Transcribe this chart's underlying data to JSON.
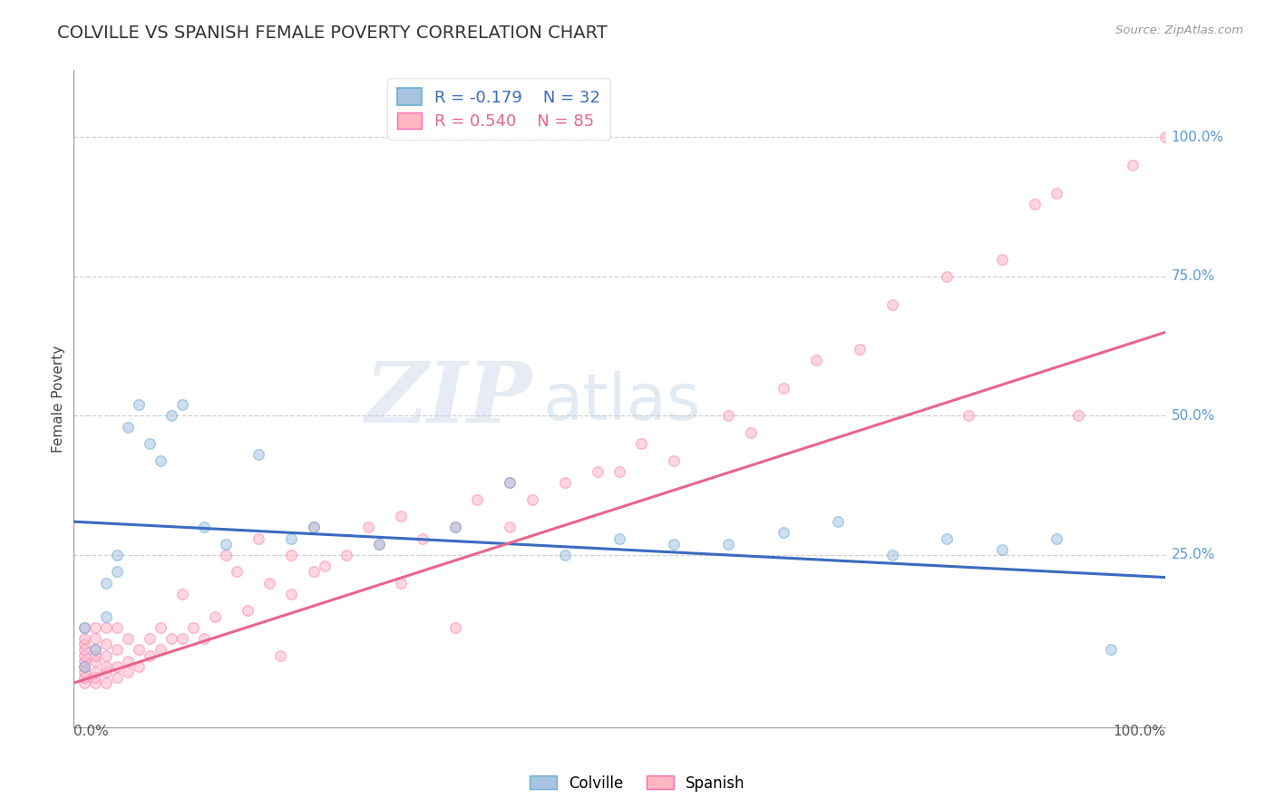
{
  "title": "COLVILLE VS SPANISH FEMALE POVERTY CORRELATION CHART",
  "source_text": "Source: ZipAtlas.com",
  "ylabel": "Female Poverty",
  "x_label_bottom_left": "0.0%",
  "x_label_bottom_right": "100.0%",
  "y_tick_labels": [
    "25.0%",
    "50.0%",
    "75.0%",
    "100.0%"
  ],
  "y_tick_positions": [
    0.25,
    0.5,
    0.75,
    1.0
  ],
  "colville_color": "#a8c4e0",
  "colville_edge_color": "#6baed6",
  "spanish_color": "#ffb6c1",
  "spanish_edge_color": "#ff69b4",
  "colville_line_color": "#3a6bbf",
  "spanish_line_color": "#e8658a",
  "colville_R": -0.179,
  "colville_N": 32,
  "spanish_R": 0.54,
  "spanish_N": 85,
  "colville_x": [
    0.01,
    0.01,
    0.02,
    0.03,
    0.03,
    0.04,
    0.04,
    0.05,
    0.06,
    0.07,
    0.08,
    0.09,
    0.1,
    0.12,
    0.14,
    0.17,
    0.2,
    0.22,
    0.28,
    0.35,
    0.4,
    0.45,
    0.5,
    0.55,
    0.6,
    0.65,
    0.7,
    0.75,
    0.8,
    0.85,
    0.9,
    0.95
  ],
  "colville_y": [
    0.05,
    0.12,
    0.08,
    0.14,
    0.2,
    0.22,
    0.25,
    0.48,
    0.52,
    0.45,
    0.42,
    0.5,
    0.52,
    0.3,
    0.27,
    0.43,
    0.28,
    0.3,
    0.27,
    0.3,
    0.38,
    0.25,
    0.28,
    0.27,
    0.27,
    0.29,
    0.31,
    0.25,
    0.28,
    0.26,
    0.28,
    0.08
  ],
  "spanish_x": [
    0.01,
    0.01,
    0.01,
    0.01,
    0.01,
    0.01,
    0.01,
    0.01,
    0.01,
    0.01,
    0.02,
    0.02,
    0.02,
    0.02,
    0.02,
    0.02,
    0.02,
    0.02,
    0.03,
    0.03,
    0.03,
    0.03,
    0.03,
    0.03,
    0.04,
    0.04,
    0.04,
    0.04,
    0.05,
    0.05,
    0.05,
    0.06,
    0.06,
    0.07,
    0.07,
    0.08,
    0.08,
    0.09,
    0.1,
    0.1,
    0.11,
    0.12,
    0.13,
    0.14,
    0.15,
    0.16,
    0.17,
    0.18,
    0.19,
    0.2,
    0.2,
    0.22,
    0.22,
    0.23,
    0.25,
    0.27,
    0.28,
    0.3,
    0.3,
    0.32,
    0.35,
    0.35,
    0.37,
    0.4,
    0.4,
    0.42,
    0.45,
    0.48,
    0.5,
    0.52,
    0.55,
    0.6,
    0.62,
    0.65,
    0.68,
    0.72,
    0.75,
    0.8,
    0.82,
    0.85,
    0.88,
    0.9,
    0.92,
    0.97,
    1.0
  ],
  "spanish_y": [
    0.02,
    0.03,
    0.04,
    0.05,
    0.06,
    0.07,
    0.08,
    0.09,
    0.1,
    0.12,
    0.02,
    0.03,
    0.04,
    0.06,
    0.07,
    0.08,
    0.1,
    0.12,
    0.02,
    0.04,
    0.05,
    0.07,
    0.09,
    0.12,
    0.03,
    0.05,
    0.08,
    0.12,
    0.04,
    0.06,
    0.1,
    0.05,
    0.08,
    0.07,
    0.1,
    0.08,
    0.12,
    0.1,
    0.1,
    0.18,
    0.12,
    0.1,
    0.14,
    0.25,
    0.22,
    0.15,
    0.28,
    0.2,
    0.07,
    0.18,
    0.25,
    0.22,
    0.3,
    0.23,
    0.25,
    0.3,
    0.27,
    0.2,
    0.32,
    0.28,
    0.3,
    0.12,
    0.35,
    0.3,
    0.38,
    0.35,
    0.38,
    0.4,
    0.4,
    0.45,
    0.42,
    0.5,
    0.47,
    0.55,
    0.6,
    0.62,
    0.7,
    0.75,
    0.5,
    0.78,
    0.88,
    0.9,
    0.5,
    0.95,
    1.0
  ],
  "watermark_zip": "ZIP",
  "watermark_atlas": "atlas",
  "background_color": "#ffffff",
  "grid_color": "#d0d0d0",
  "marker_size": 70,
  "marker_alpha": 0.55
}
